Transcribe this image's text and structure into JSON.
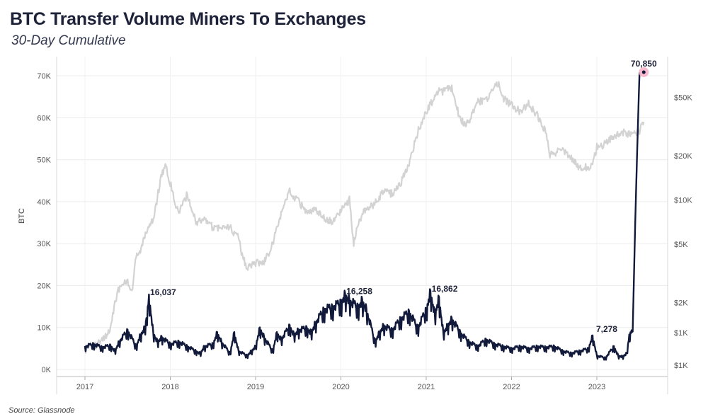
{
  "title": "BTC Transfer Volume Miners To Exchanges",
  "subtitle": "30-Day Cumulative",
  "source": "Source: Glassnode",
  "chart_data": {
    "type": "line",
    "ylabel": "BTC",
    "ylim": [
      0,
      74000
    ],
    "yticks": [
      0,
      10000,
      20000,
      30000,
      40000,
      50000,
      60000,
      70000
    ],
    "ytick_labels": [
      "0K",
      "10K",
      "20K",
      "30K",
      "40K",
      "50K",
      "60K",
      "70K"
    ],
    "y2_scale": "log",
    "y2lim": [
      600,
      80000
    ],
    "y2ticks": [
      750,
      1250,
      2000,
      5000,
      10000,
      20000,
      50000
    ],
    "y2tick_labels": [
      "$1K",
      "$1K",
      "$2K",
      "$5K",
      "$10K",
      "$20K",
      "$50K"
    ],
    "xlim": [
      2016.85,
      2024.0
    ],
    "xticks": [
      2017,
      2018,
      2019,
      2020,
      2021,
      2022,
      2023
    ],
    "xtick_labels": [
      "2017",
      "2018",
      "2019",
      "2020",
      "2021",
      "2022",
      "2023"
    ],
    "grid": true,
    "colors": {
      "volume": "#121a3b",
      "price": "#d3d3d3",
      "highlight": "#f7b4c8"
    },
    "series": [
      {
        "axis": "left",
        "color": "#121a3b",
        "x": [
          2017.0,
          2017.1,
          2017.2,
          2017.3,
          2017.35,
          2017.4,
          2017.5,
          2017.6,
          2017.65,
          2017.7,
          2017.72,
          2017.75,
          2017.8,
          2017.85,
          2017.9,
          2018.0,
          2018.1,
          2018.2,
          2018.3,
          2018.35,
          2018.4,
          2018.5,
          2018.55,
          2018.6,
          2018.7,
          2018.75,
          2018.8,
          2018.9,
          2018.95,
          2019.0,
          2019.05,
          2019.1,
          2019.2,
          2019.25,
          2019.3,
          2019.4,
          2019.45,
          2019.5,
          2019.6,
          2019.65,
          2019.7,
          2019.8,
          2019.9,
          2020.0,
          2020.05,
          2020.1,
          2020.2,
          2020.25,
          2020.3,
          2020.4,
          2020.45,
          2020.5,
          2020.6,
          2020.7,
          2020.8,
          2020.9,
          2021.0,
          2021.05,
          2021.1,
          2021.15,
          2021.2,
          2021.25,
          2021.3,
          2021.4,
          2021.5,
          2021.6,
          2021.7,
          2021.8,
          2021.9,
          2022.0,
          2022.1,
          2022.2,
          2022.3,
          2022.4,
          2022.5,
          2022.6,
          2022.7,
          2022.8,
          2022.9,
          2022.95,
          2023.0,
          2023.1,
          2023.2,
          2023.25,
          2023.3,
          2023.35,
          2023.38,
          2023.42,
          2023.45,
          2023.47,
          2023.5,
          2023.55
        ],
        "values": [
          5000,
          5500,
          4800,
          5200,
          4000,
          6000,
          8500,
          5000,
          7500,
          9000,
          11000,
          16037,
          8000,
          6000,
          7000,
          5500,
          6000,
          5000,
          4000,
          3500,
          5000,
          5500,
          8000,
          6000,
          3500,
          8000,
          4000,
          3000,
          4000,
          5000,
          9000,
          7000,
          4000,
          8000,
          6500,
          9500,
          7500,
          8500,
          9000,
          8000,
          10000,
          13000,
          13500,
          14500,
          16258,
          15000,
          13500,
          15000,
          13000,
          6000,
          8000,
          9500,
          8500,
          11000,
          12500,
          9000,
          13000,
          16862,
          12000,
          15500,
          8000,
          9500,
          11000,
          8000,
          6000,
          5000,
          6500,
          5500,
          5000,
          4500,
          5000,
          4500,
          5000,
          4800,
          5000,
          4000,
          3500,
          4000,
          4500,
          7278,
          3000,
          2500,
          5000,
          3000,
          2800,
          3500,
          7500,
          9000,
          35000,
          50000,
          70850,
          70850
        ]
      },
      {
        "axis": "right",
        "color": "#d3d3d3",
        "x": [
          2017.0,
          2017.1,
          2017.2,
          2017.3,
          2017.35,
          2017.4,
          2017.5,
          2017.55,
          2017.6,
          2017.65,
          2017.7,
          2017.8,
          2017.85,
          2017.9,
          2017.95,
          2018.0,
          2018.05,
          2018.1,
          2018.15,
          2018.2,
          2018.3,
          2018.4,
          2018.5,
          2018.6,
          2018.7,
          2018.8,
          2018.85,
          2018.9,
          2019.0,
          2019.1,
          2019.2,
          2019.3,
          2019.4,
          2019.45,
          2019.5,
          2019.6,
          2019.7,
          2019.8,
          2019.9,
          2020.0,
          2020.1,
          2020.15,
          2020.2,
          2020.3,
          2020.4,
          2020.5,
          2020.6,
          2020.7,
          2020.8,
          2020.9,
          2021.0,
          2021.1,
          2021.15,
          2021.2,
          2021.3,
          2021.4,
          2021.45,
          2021.5,
          2021.6,
          2021.7,
          2021.8,
          2021.85,
          2021.9,
          2022.0,
          2022.1,
          2022.2,
          2022.3,
          2022.4,
          2022.45,
          2022.5,
          2022.6,
          2022.7,
          2022.8,
          2022.9,
          2022.95,
          2023.0,
          2023.1,
          2023.2,
          2023.3,
          2023.4,
          2023.5,
          2023.55
        ],
        "values": [
          950,
          1000,
          1100,
          1300,
          2000,
          2500,
          2800,
          2300,
          4200,
          4300,
          5800,
          7300,
          10500,
          15000,
          17000,
          13000,
          10000,
          8000,
          9500,
          11000,
          7000,
          7500,
          6500,
          6400,
          6500,
          5500,
          4000,
          3500,
          3700,
          3800,
          5000,
          8000,
          11500,
          10500,
          10000,
          8000,
          8500,
          7500,
          7200,
          8500,
          10000,
          5000,
          7000,
          9000,
          9400,
          11500,
          11000,
          13000,
          18000,
          29000,
          40000,
          50000,
          55000,
          55000,
          58000,
          35000,
          33000,
          34000,
          46000,
          48000,
          60000,
          61000,
          50000,
          44000,
          40000,
          45000,
          38000,
          29000,
          20000,
          21000,
          22000,
          19500,
          16500,
          16800,
          17000,
          23000,
          24000,
          27000,
          29000,
          28000,
          29500,
          34000
        ]
      }
    ],
    "annotations": [
      {
        "x": 2017.75,
        "y": 16037,
        "label": "16,037"
      },
      {
        "x": 2020.05,
        "y": 16258,
        "label": "16,258"
      },
      {
        "x": 2021.05,
        "y": 16862,
        "label": "16,862"
      },
      {
        "x": 2022.95,
        "y": 7278,
        "label": "7,278"
      },
      {
        "x": 2023.55,
        "y": 70850,
        "label": "70,850",
        "highlight": true
      }
    ]
  }
}
